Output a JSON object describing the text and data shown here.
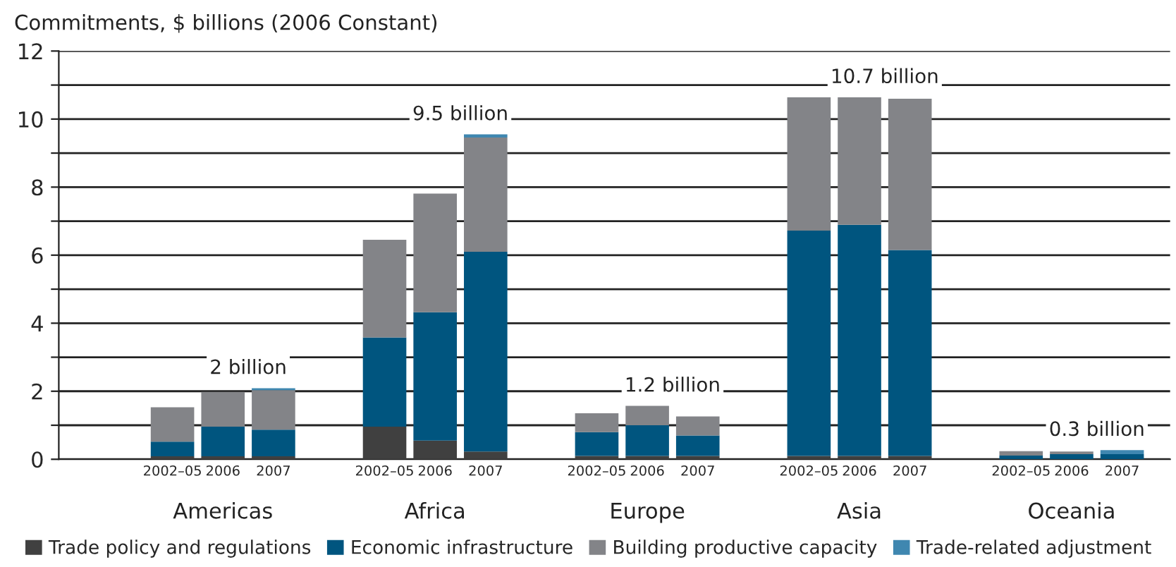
{
  "chart_data": {
    "type": "bar",
    "stacked": true,
    "ylabel": "Commitments, $ billions (2006 Constant)",
    "categories": [
      "2002–05",
      "2006",
      "2007",
      "2002–05",
      "2006",
      "2007",
      "2002–05",
      "2006",
      "2007",
      "2002–05",
      "2006",
      "2007",
      "2002–05",
      "2006",
      "2007"
    ],
    "series": [
      {
        "name": "Trade policy and regulations",
        "color": "#404040",
        "values": [
          0.09,
          0.09,
          0.09,
          0.96,
          0.55,
          0.23,
          0.1,
          0.1,
          0.1,
          0.1,
          0.1,
          0.1,
          null,
          null,
          null
        ]
      },
      {
        "name": "Economic infrastructure",
        "color": "#00557f",
        "values": [
          0.43,
          0.87,
          0.78,
          2.62,
          3.77,
          5.87,
          0.7,
          0.9,
          0.6,
          6.62,
          6.79,
          6.05,
          0.11,
          0.15,
          0.15
        ]
      },
      {
        "name": "Building productive capacity",
        "color": "#838488",
        "values": [
          1.01,
          1.02,
          1.16,
          2.87,
          3.49,
          3.36,
          0.55,
          0.57,
          0.56,
          3.92,
          3.75,
          4.45,
          0.13,
          0.08,
          0.0
        ]
      },
      {
        "name": "Trade-related adjustment",
        "color": "#3f87b0",
        "values": [
          0,
          0,
          0.06,
          0,
          0,
          0.09,
          0,
          0,
          0,
          0,
          0,
          0,
          0,
          0,
          0.12
        ]
      }
    ],
    "annotations": [
      "Americas",
      "Africa",
      "Europe",
      "Asia",
      "Oceania",
      "2 billion",
      "9.5 billion",
      "1.2 billion",
      "10.7 billion",
      "0.3 billion"
    ],
    "ylim": [
      0,
      12
    ],
    "yticks": [
      0,
      {
        "value": 1,
        "label": null
      },
      2,
      {
        "value": 3,
        "label": null
      },
      4,
      {
        "value": 5,
        "label": null
      },
      6,
      {
        "value": 7,
        "label": null
      },
      8,
      {
        "value": 9,
        "label": null
      },
      10,
      {
        "value": 11,
        "label": null
      },
      12
    ],
    "grid": "y",
    "legend": "bottom"
  }
}
